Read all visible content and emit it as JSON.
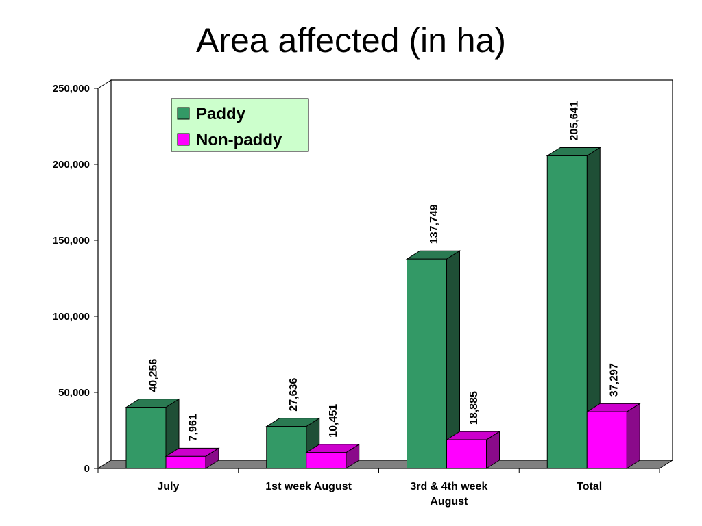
{
  "chart_data": {
    "type": "bar",
    "title": "Area affected (in ha)",
    "categories": [
      [
        "July"
      ],
      [
        "1st week August"
      ],
      [
        "3rd & 4th week",
        "August"
      ],
      [
        "Total"
      ]
    ],
    "series": [
      {
        "name": "Paddy",
        "values": [
          40256,
          27636,
          137749,
          205641
        ],
        "labels": [
          "40,256",
          "27,636",
          "137,749",
          "205,641"
        ],
        "color": "#339966",
        "side_color": "#1f4f36",
        "top_color": "#2a7a52"
      },
      {
        "name": "Non-paddy",
        "values": [
          7961,
          10451,
          18885,
          37297
        ],
        "labels": [
          "7,961",
          "10,451",
          "18,885",
          "37,297"
        ],
        "color": "#ff00ff",
        "side_color": "#8a0a8a",
        "top_color": "#cc00cc"
      }
    ],
    "ylim": [
      0,
      250000
    ],
    "yticks": [
      0,
      50000,
      100000,
      150000,
      200000,
      250000
    ],
    "ytick_labels": [
      "0",
      "50,000",
      "100,000",
      "150,000",
      "200,000",
      "250,000"
    ],
    "xlabel": "",
    "ylabel": "",
    "grid": true,
    "legend_position": "top-left",
    "legend_bg": "#ccffcc",
    "floor_color": "#808080"
  }
}
